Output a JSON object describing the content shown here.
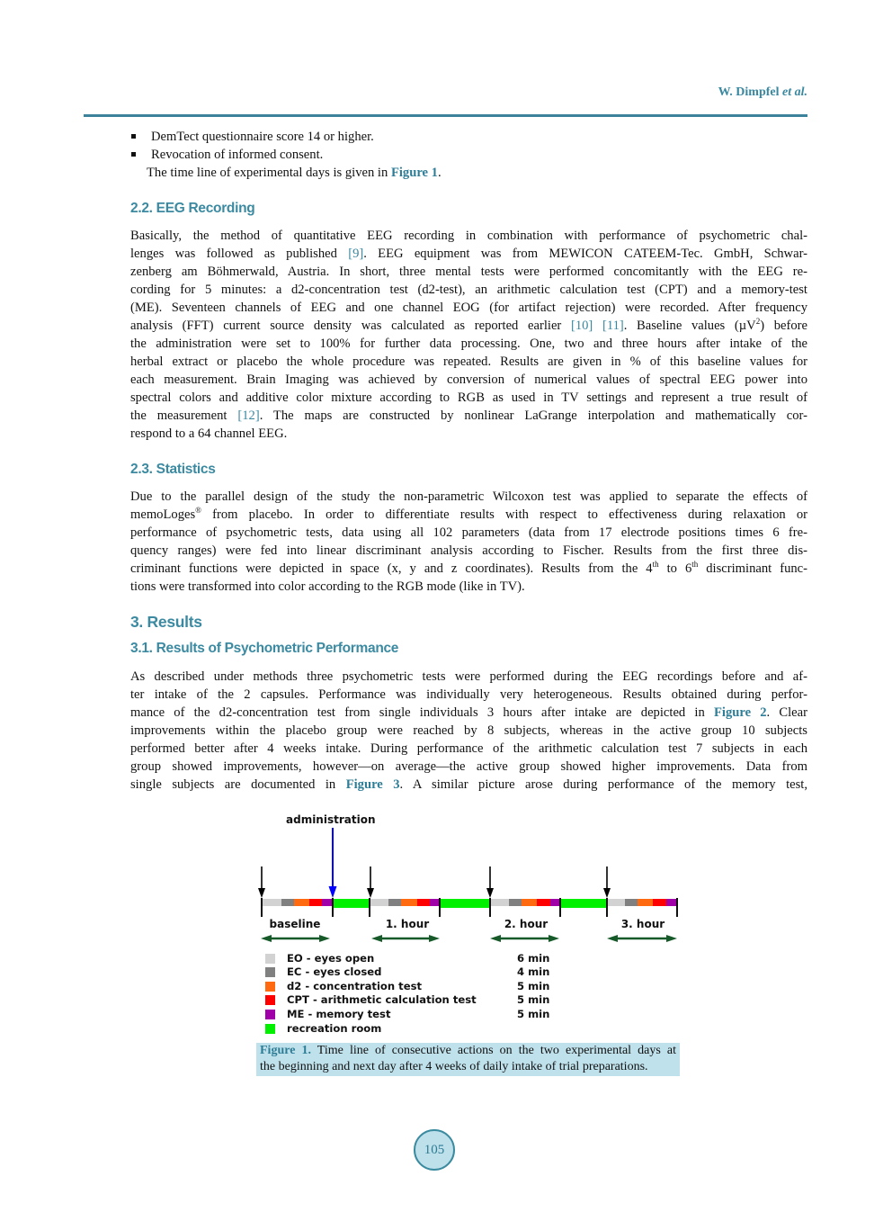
{
  "header": {
    "author": "W. Dimpfel ",
    "etal": "et al."
  },
  "bullets": [
    "DemTect questionnaire score 14 or higher.",
    "Revocation of informed consent."
  ],
  "intro": {
    "lines": [
      [
        "The time line of experimental days is given in ",
        {
          "t": "Figure 1",
          "k": "fig"
        },
        "."
      ]
    ]
  },
  "eeg_recording": {
    "heading": "2.2. EEG Recording",
    "lines": [
      [
        "Basically, the method of quantitative EEG recording in combination with performance of psychometric chal-"
      ],
      [
        "lenges was followed as published ",
        {
          "t": "[9]",
          "k": "ref"
        },
        ". EEG equipment was from MEWICON CATEEM-Tec. GmbH, Schwar-"
      ],
      [
        "zenberg am Böhmerwald, Austria. In short, three mental tests were performed concomitantly with the EEG re-"
      ],
      [
        "cording for 5 minutes: a d2-concentration test (d2-test), an arithmetic calculation test (CPT) and a memory-test"
      ],
      [
        "(ME). Seventeen channels of EEG and one channel EOG (for artifact rejection) were recorded. After frequency"
      ],
      [
        "analysis (FFT) current source density was calculated as reported earlier ",
        {
          "t": "[10]",
          "k": "ref"
        },
        " ",
        {
          "t": "[11]",
          "k": "ref"
        },
        ". Baseline values (µV",
        {
          "t": "2",
          "k": "sup"
        },
        ") before"
      ],
      [
        "the administration were set to 100% for further data processing. One, two and three hours after intake of the"
      ],
      [
        "herbal extract or placebo the whole procedure was repeated. Results are given in % of this baseline values for"
      ],
      [
        "each measurement. Brain Imaging was achieved by conversion of numerical values of spectral EEG power into"
      ],
      [
        "spectral colors and additive color mixture according to RGB as used in TV settings and represent a true result of"
      ],
      [
        "the measurement ",
        {
          "t": "[12]",
          "k": "ref"
        },
        ". The maps are constructed by nonlinear LaGrange interpolation and mathematically cor-"
      ],
      [
        "respond to a 64 channel EEG."
      ]
    ]
  },
  "statistics": {
    "heading": "2.3. Statistics",
    "lines": [
      [
        "Due to the parallel design of the study the non-parametric Wilcoxon test was applied to separate the effects of"
      ],
      [
        "memoLoges",
        {
          "t": "®",
          "k": "sup"
        },
        " from placebo. In order to differentiate results with respect to effectiveness during relaxation or"
      ],
      [
        "performance of psychometric tests, data using all 102 parameters (data from 17 electrode positions times 6 fre-"
      ],
      [
        "quency ranges) were fed into linear discriminant analysis according to Fischer. Results from the first three dis-"
      ],
      [
        "criminant functions were depicted in space (x, y and z coordinates). Results from the 4",
        {
          "t": "th",
          "k": "sup"
        },
        " to 6",
        {
          "t": "th",
          "k": "sup"
        },
        " discriminant func-"
      ],
      [
        "tions were transformed into color according to the RGB mode (like in TV)."
      ]
    ]
  },
  "results": {
    "heading": "3. Results",
    "subheading": "3.1. Results of Psychometric Performance",
    "lines": [
      [
        "As described under methods three psychometric tests were performed during the EEG recordings before and af-"
      ],
      [
        "ter intake of the 2 capsules. Performance was individually very heterogeneous. Results obtained during perfor-"
      ],
      [
        "mance of the d2-concentration test from single individuals 3 hours after intake are depicted in ",
        {
          "t": "Figure 2",
          "k": "fig"
        },
        ". Clear"
      ],
      [
        "improvements within the placebo group were reached by 8 subjects, whereas in the active group 10 subjects"
      ],
      [
        "performed better after 4 weeks intake. During performance of the arithmetic calculation test 7 subjects in each"
      ],
      [
        "group showed improvements, however—on average—the active group showed higher improvements. Data from"
      ],
      [
        "single subjects are documented in ",
        {
          "t": "Figure 3",
          "k": "fig"
        },
        ". A similar picture arose during performance of the memory test,"
      ]
    ]
  },
  "figure1": {
    "administration_label": "administration",
    "periods": [
      {
        "label": "baseline"
      },
      {
        "label": "1. hour"
      },
      {
        "label": "2. hour"
      },
      {
        "label": "3. hour"
      }
    ],
    "legend": [
      {
        "label": "EO - eyes open",
        "duration": "6 min",
        "color": "#d2d2d2"
      },
      {
        "label": "EC - eyes closed",
        "duration": "4 min",
        "color": "#808080"
      },
      {
        "label": "d2 - concentration test",
        "duration": "5 min",
        "color": "#ff6a10"
      },
      {
        "label": "CPT - arithmetic calculation test",
        "duration": "5 min",
        "color": "#ff0000"
      },
      {
        "label": "ME - memory test",
        "duration": "5 min",
        "color": "#a000a8"
      },
      {
        "label": "recreation room",
        "duration": "",
        "color": "#00f000"
      }
    ],
    "colors": {
      "administration_arrow": "#0000ff",
      "time_arrow": "#000000",
      "period_arrow": "#175a2a"
    },
    "caption": {
      "label": "Figure 1.",
      "line1": " Time line of consecutive actions on the two experimental days at",
      "line2": "the beginning and next day after 4 weeks of daily intake of trial preparations."
    }
  },
  "page_number": "105"
}
